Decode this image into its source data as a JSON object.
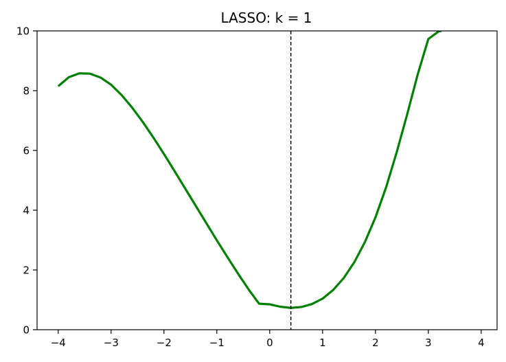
{
  "chart_data": {
    "type": "line",
    "title": "LASSO: k = 1",
    "xlabel": "",
    "ylabel": "",
    "xlim": [
      -4.4,
      4.3
    ],
    "ylim": [
      0,
      10
    ],
    "x_ticks": [
      -4,
      -3,
      -2,
      -1,
      0,
      1,
      2,
      3,
      4
    ],
    "x_tick_labels": [
      "−4",
      "−3",
      "−2",
      "−1",
      "0",
      "1",
      "2",
      "3",
      "4"
    ],
    "y_ticks": [
      0,
      2,
      4,
      6,
      8,
      10
    ],
    "y_tick_labels": [
      "0",
      "2",
      "4",
      "6",
      "8",
      "10"
    ],
    "grid": false,
    "series": [
      {
        "color": "#008000",
        "x": [
          -4.0,
          -3.8,
          -3.6,
          -3.4,
          -3.2,
          -3.0,
          -2.8,
          -2.6,
          -2.4,
          -2.2,
          -2.0,
          -1.8,
          -1.6,
          -1.4,
          -1.2,
          -1.0,
          -0.8,
          -0.6,
          -0.4,
          -0.2,
          0.0,
          0.2,
          0.4,
          0.6,
          0.8,
          1.0,
          1.2,
          1.4,
          1.6,
          1.8,
          2.0,
          2.2,
          2.4,
          2.6,
          2.8,
          3.0,
          3.2,
          3.25
        ],
        "y": [
          8.15,
          8.45,
          8.58,
          8.57,
          8.44,
          8.2,
          7.85,
          7.43,
          6.95,
          6.43,
          5.88,
          5.31,
          4.73,
          4.15,
          3.57,
          2.99,
          2.43,
          1.88,
          1.35,
          0.87,
          0.85,
          0.77,
          0.73,
          0.76,
          0.86,
          1.04,
          1.33,
          1.73,
          2.26,
          2.93,
          3.76,
          4.76,
          5.93,
          7.21,
          8.55,
          9.73,
          9.99,
          10.0
        ]
      }
    ],
    "vline": {
      "x": 0.4,
      "style": "dashed",
      "color": "#000000"
    }
  }
}
